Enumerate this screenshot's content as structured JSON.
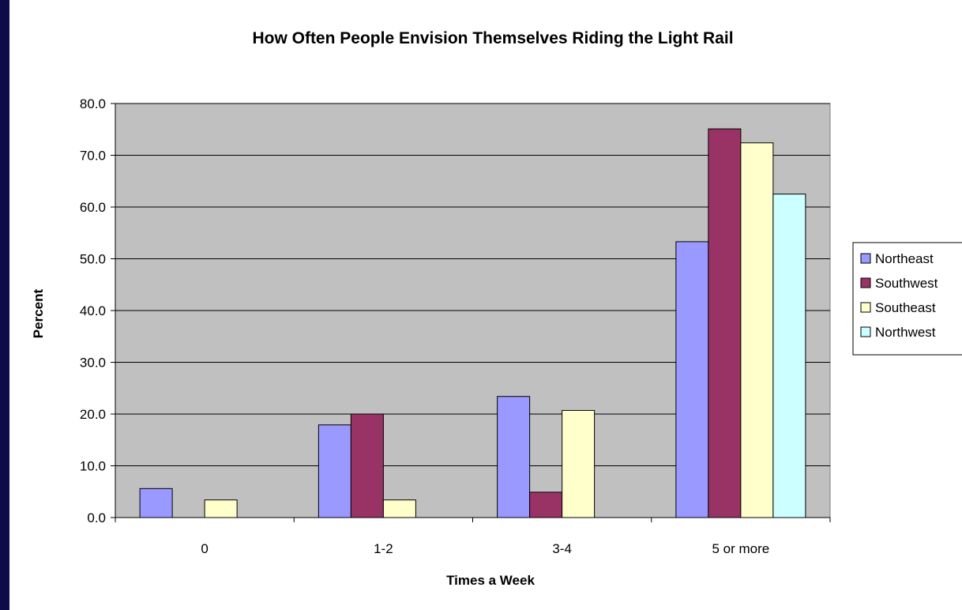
{
  "chart_data": {
    "type": "bar",
    "title": "How Often People Envision Themselves Riding the Light Rail",
    "xlabel": "Times a Week",
    "ylabel": "Percent",
    "ylim": [
      0,
      80
    ],
    "ytick_step": 10,
    "ytick_labels": [
      "0.0",
      "10.0",
      "20.0",
      "30.0",
      "40.0",
      "50.0",
      "60.0",
      "70.0",
      "80.0"
    ],
    "categories": [
      "0",
      "1-2",
      "3-4",
      "5 or more"
    ],
    "series": [
      {
        "name": "Northeast",
        "color": "#9999ff",
        "values": [
          5.6,
          17.9,
          23.4,
          53.3
        ]
      },
      {
        "name": "Southwest",
        "color": "#993366",
        "values": [
          0.0,
          20.0,
          4.9,
          75.1
        ]
      },
      {
        "name": "Southeast",
        "color": "#ffffcc",
        "values": [
          3.4,
          3.4,
          20.7,
          72.4
        ]
      },
      {
        "name": "Northwest",
        "color": "#ccffff",
        "values": [
          0.0,
          0.0,
          0.0,
          62.5
        ]
      }
    ],
    "grid": true,
    "plot_background": "#c0c0c0",
    "legend_position": "right"
  }
}
